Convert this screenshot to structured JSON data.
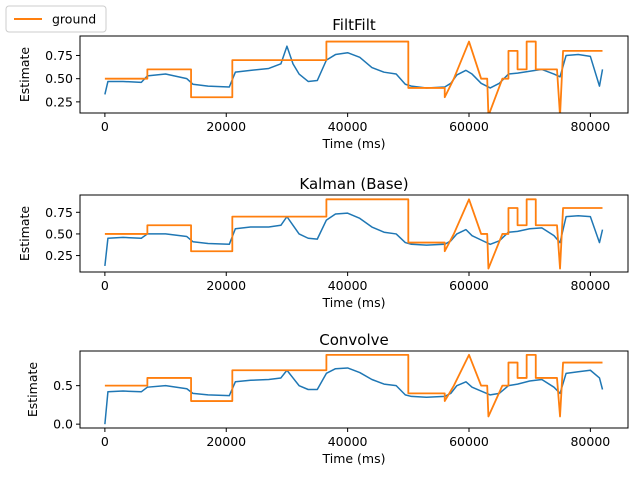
{
  "legend": {
    "entries": [
      {
        "name": "ground",
        "color": "#ff7f0e"
      }
    ],
    "placement": "top-left (figure)"
  },
  "chart_data": [
    {
      "type": "line",
      "title": "FiltFilt",
      "xlabel": "Time (ms)",
      "ylabel": "Estimate",
      "xlim": [
        -4100,
        86200
      ],
      "ylim": [
        0.13,
        0.96
      ],
      "xticks": [
        0,
        20000,
        40000,
        60000,
        80000
      ],
      "xtick_labels": [
        "0",
        "20000",
        "40000",
        "60000",
        "80000"
      ],
      "yticks": [
        0.25,
        0.5,
        0.75
      ],
      "ytick_labels": [
        "0.25",
        "0.50",
        "0.75"
      ],
      "grid": false,
      "series": [
        {
          "name": "",
          "color": "#1f77b4",
          "x": [
            0,
            500,
            3000,
            6000,
            7000,
            10000,
            13500,
            14500,
            17000,
            20500,
            21500,
            24000,
            27000,
            29000,
            30000,
            31000,
            32000,
            33500,
            35000,
            36500,
            38000,
            40000,
            42000,
            44000,
            46000,
            48000,
            49500,
            50500,
            53000,
            56000,
            57000,
            58000,
            59500,
            60500,
            62000,
            63500,
            65000,
            66500,
            68000,
            70000,
            72000,
            74000,
            75000,
            76000,
            78000,
            80000,
            81500,
            82000
          ],
          "y": [
            0.33,
            0.47,
            0.47,
            0.46,
            0.53,
            0.55,
            0.5,
            0.44,
            0.42,
            0.41,
            0.57,
            0.59,
            0.61,
            0.66,
            0.85,
            0.66,
            0.55,
            0.47,
            0.48,
            0.7,
            0.76,
            0.78,
            0.73,
            0.62,
            0.57,
            0.55,
            0.44,
            0.42,
            0.4,
            0.41,
            0.45,
            0.54,
            0.59,
            0.55,
            0.45,
            0.4,
            0.45,
            0.55,
            0.56,
            0.58,
            0.6,
            0.55,
            0.52,
            0.75,
            0.76,
            0.74,
            0.42,
            0.6
          ]
        },
        {
          "name": "ground",
          "color": "#ff7f0e",
          "x": [
            0,
            7000,
            7000,
            14200,
            14200,
            21000,
            21000,
            36500,
            36500,
            50000,
            50000,
            56000,
            56000,
            57500,
            60000,
            62000,
            63000,
            63200,
            65500,
            65500,
            66500,
            66500,
            68000,
            68000,
            69500,
            69500,
            71000,
            71000,
            72000,
            72000,
            74500,
            75000,
            75500,
            76000,
            82000
          ],
          "y": [
            0.5,
            0.5,
            0.6,
            0.6,
            0.3,
            0.3,
            0.7,
            0.7,
            0.9,
            0.9,
            0.4,
            0.4,
            0.3,
            0.5,
            0.9,
            0.5,
            0.5,
            0.1,
            0.5,
            0.5,
            0.5,
            0.8,
            0.8,
            0.6,
            0.6,
            0.9,
            0.9,
            0.6,
            0.6,
            0.6,
            0.6,
            0.1,
            0.8,
            0.8,
            0.8
          ]
        }
      ]
    },
    {
      "type": "line",
      "title": "Kalman (Base)",
      "xlabel": "Time (ms)",
      "ylabel": "Estimate",
      "xlim": [
        -4100,
        86200
      ],
      "ylim": [
        0.06,
        0.95
      ],
      "xticks": [
        0,
        20000,
        40000,
        60000,
        80000
      ],
      "xtick_labels": [
        "0",
        "20000",
        "40000",
        "60000",
        "80000"
      ],
      "yticks": [
        0.25,
        0.5,
        0.75
      ],
      "ytick_labels": [
        "0.25",
        "0.50",
        "0.75"
      ],
      "grid": false,
      "series": [
        {
          "name": "",
          "color": "#1f77b4",
          "x": [
            0,
            500,
            3000,
            6000,
            7000,
            10000,
            13500,
            14500,
            17000,
            20500,
            21500,
            24000,
            27000,
            29000,
            30000,
            31000,
            32000,
            33500,
            35000,
            36500,
            38000,
            40000,
            42000,
            44000,
            46000,
            48000,
            49500,
            50500,
            53000,
            56000,
            57000,
            58000,
            59500,
            60500,
            62000,
            63500,
            65000,
            66500,
            68000,
            70000,
            72000,
            74000,
            75000,
            76000,
            78000,
            80000,
            81500,
            82000
          ],
          "y": [
            0.13,
            0.45,
            0.46,
            0.45,
            0.5,
            0.5,
            0.47,
            0.41,
            0.39,
            0.38,
            0.56,
            0.58,
            0.58,
            0.6,
            0.7,
            0.6,
            0.5,
            0.45,
            0.44,
            0.66,
            0.73,
            0.74,
            0.68,
            0.58,
            0.52,
            0.5,
            0.4,
            0.38,
            0.37,
            0.38,
            0.42,
            0.5,
            0.55,
            0.48,
            0.43,
            0.38,
            0.42,
            0.52,
            0.53,
            0.56,
            0.57,
            0.48,
            0.4,
            0.7,
            0.71,
            0.7,
            0.4,
            0.55
          ]
        },
        {
          "name": "ground",
          "color": "#ff7f0e",
          "x": [
            0,
            7000,
            7000,
            14200,
            14200,
            21000,
            21000,
            36500,
            36500,
            50000,
            50000,
            56000,
            56000,
            57500,
            60000,
            62000,
            63000,
            63200,
            65500,
            65500,
            66500,
            66500,
            68000,
            68000,
            69500,
            69500,
            71000,
            71000,
            72000,
            72000,
            74500,
            75000,
            75500,
            76000,
            82000
          ],
          "y": [
            0.5,
            0.5,
            0.6,
            0.6,
            0.3,
            0.3,
            0.7,
            0.7,
            0.9,
            0.9,
            0.4,
            0.4,
            0.3,
            0.5,
            0.9,
            0.5,
            0.5,
            0.1,
            0.5,
            0.5,
            0.5,
            0.8,
            0.8,
            0.6,
            0.6,
            0.9,
            0.9,
            0.6,
            0.6,
            0.6,
            0.6,
            0.1,
            0.8,
            0.8,
            0.8
          ]
        }
      ]
    },
    {
      "type": "line",
      "title": "Convolve",
      "xlabel": "Time (ms)",
      "ylabel": "Estimate",
      "xlim": [
        -4100,
        86200
      ],
      "ylim": [
        -0.05,
        0.95
      ],
      "xticks": [
        0,
        20000,
        40000,
        60000,
        80000
      ],
      "xtick_labels": [
        "0",
        "20000",
        "40000",
        "60000",
        "80000"
      ],
      "yticks": [
        0.0,
        0.5
      ],
      "ytick_labels": [
        "0.0",
        "0.5"
      ],
      "grid": false,
      "series": [
        {
          "name": "",
          "color": "#1f77b4",
          "x": [
            0,
            500,
            3000,
            6000,
            7000,
            10000,
            13500,
            14500,
            17000,
            20500,
            21500,
            24000,
            27000,
            29000,
            30000,
            31000,
            32000,
            33500,
            35000,
            36500,
            38000,
            40000,
            42000,
            44000,
            46000,
            48000,
            49500,
            50500,
            53000,
            56000,
            57000,
            58000,
            59500,
            60500,
            62000,
            63500,
            65000,
            66500,
            68000,
            70000,
            72000,
            74000,
            75000,
            76000,
            78000,
            80000,
            81500,
            82000
          ],
          "y": [
            0.0,
            0.42,
            0.43,
            0.42,
            0.48,
            0.5,
            0.46,
            0.4,
            0.38,
            0.37,
            0.55,
            0.57,
            0.58,
            0.6,
            0.7,
            0.6,
            0.5,
            0.45,
            0.45,
            0.66,
            0.72,
            0.73,
            0.67,
            0.58,
            0.52,
            0.5,
            0.38,
            0.36,
            0.35,
            0.36,
            0.4,
            0.5,
            0.55,
            0.48,
            0.43,
            0.38,
            0.4,
            0.5,
            0.52,
            0.56,
            0.58,
            0.48,
            0.4,
            0.66,
            0.68,
            0.7,
            0.6,
            0.45
          ]
        },
        {
          "name": "ground",
          "color": "#ff7f0e",
          "x": [
            0,
            7000,
            7000,
            14200,
            14200,
            21000,
            21000,
            36500,
            36500,
            50000,
            50000,
            56000,
            56000,
            57500,
            60000,
            62000,
            63000,
            63200,
            65500,
            65500,
            66500,
            66500,
            68000,
            68000,
            69500,
            69500,
            71000,
            71000,
            72000,
            72000,
            74500,
            75000,
            75500,
            76000,
            82000
          ],
          "y": [
            0.5,
            0.5,
            0.6,
            0.6,
            0.3,
            0.3,
            0.7,
            0.7,
            0.9,
            0.9,
            0.4,
            0.4,
            0.3,
            0.5,
            0.9,
            0.5,
            0.5,
            0.1,
            0.5,
            0.5,
            0.5,
            0.8,
            0.8,
            0.6,
            0.6,
            0.9,
            0.9,
            0.6,
            0.6,
            0.6,
            0.6,
            0.1,
            0.8,
            0.8,
            0.8
          ]
        }
      ]
    }
  ]
}
